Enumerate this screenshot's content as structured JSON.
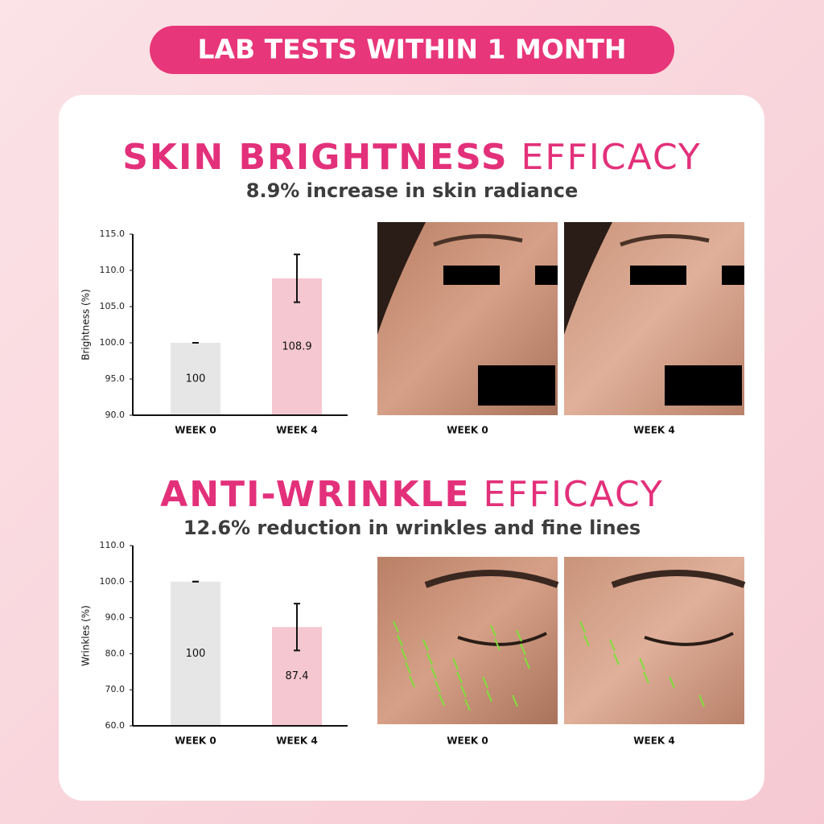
{
  "header": "LAB TESTS WITHIN 1 MONTH",
  "chart_data": [
    {
      "type": "bar",
      "title": {
        "highlight": "SKIN BRIGHTNESS",
        "rest": "EFFICACY"
      },
      "subtitle": "8.9% increase in skin radiance",
      "y_label": "Brightness (%)",
      "categories": [
        "WEEK 0",
        "WEEK 4"
      ],
      "values": [
        100,
        108.9
      ],
      "errors": [
        0,
        3.3
      ],
      "colors": [
        "#e6e6e6",
        "#f5c7d1"
      ],
      "ylim": [
        90,
        115
      ],
      "yticks": [
        {
          "value": 90,
          "label": "90.0"
        },
        {
          "value": 95,
          "label": "95.0"
        },
        {
          "value": 100,
          "label": "100.0"
        },
        {
          "value": 105,
          "label": "105.0"
        },
        {
          "value": 110,
          "label": "110.0"
        },
        {
          "value": 115,
          "label": "115.0"
        }
      ],
      "photo_labels": [
        "WEEK 0",
        "WEEK 4"
      ]
    },
    {
      "type": "bar",
      "title": {
        "highlight": "ANTI-WRINKLE",
        "rest": "EFFICACY"
      },
      "subtitle": "12.6% reduction in wrinkles and fine lines",
      "y_label": "Wrinkles (%)",
      "categories": [
        "WEEK 0",
        "WEEK 4"
      ],
      "values": [
        100,
        87.4
      ],
      "errors": [
        0,
        6.5
      ],
      "colors": [
        "#e6e6e6",
        "#f5c7d1"
      ],
      "ylim": [
        60,
        110
      ],
      "yticks": [
        {
          "value": 60,
          "label": "60.0"
        },
        {
          "value": 70,
          "label": "70.0"
        },
        {
          "value": 80,
          "label": "80.0"
        },
        {
          "value": 90,
          "label": "90.0"
        },
        {
          "value": 100,
          "label": "100.0"
        },
        {
          "value": 110,
          "label": "110.0"
        }
      ],
      "photo_labels": [
        "WEEK 0",
        "WEEK 4"
      ]
    }
  ]
}
